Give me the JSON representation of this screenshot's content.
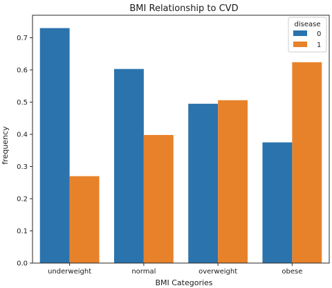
{
  "chart_data": {
    "type": "bar",
    "title": "BMI Relationship to CVD",
    "xlabel": "BMI Categories",
    "ylabel": "frequency",
    "categories": [
      "underweight",
      "normal",
      "overweight",
      "obese"
    ],
    "series": [
      {
        "name": "0",
        "values": [
          0.73,
          0.603,
          0.495,
          0.375
        ],
        "color": "#2b73ad"
      },
      {
        "name": "1",
        "values": [
          0.27,
          0.398,
          0.506,
          0.624
        ],
        "color": "#e8822a"
      }
    ],
    "ylim": [
      0,
      0.77
    ],
    "yticks": [
      0.0,
      0.1,
      0.2,
      0.3,
      0.4,
      0.5,
      0.6,
      0.7
    ],
    "ytick_labels": [
      "0.0",
      "0.1",
      "0.2",
      "0.3",
      "0.4",
      "0.5",
      "0.6",
      "0.7"
    ],
    "grid": false,
    "legend": {
      "title": "disease",
      "position": "top-right"
    }
  }
}
